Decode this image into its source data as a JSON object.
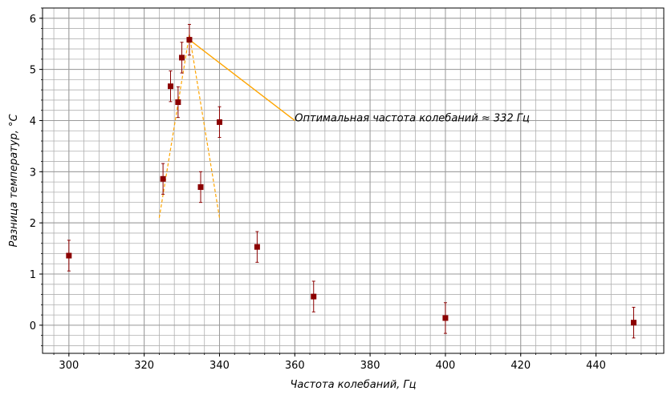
{
  "chart_data": {
    "type": "scatter",
    "xlabel": "Частота колебаний, Гц",
    "ylabel": "Разница температур, °C",
    "xlim": [
      293,
      458
    ],
    "ylim": [
      -0.55,
      6.2
    ],
    "x_ticks": [
      300,
      320,
      340,
      360,
      380,
      400,
      420,
      440
    ],
    "y_ticks": [
      0,
      1,
      2,
      3,
      4,
      5,
      6
    ],
    "x_minor_step": 4,
    "y_minor_step": 0.2,
    "grid": true,
    "series": [
      {
        "marker": "square",
        "color": "#8b0000",
        "x": [
          300,
          325,
          327,
          329,
          330,
          332,
          335,
          340,
          350,
          365,
          400,
          450
        ],
        "y": [
          1.36,
          2.86,
          4.67,
          4.36,
          5.23,
          5.58,
          2.7,
          3.97,
          1.53,
          0.56,
          0.14,
          0.05
        ],
        "y_error": [
          0.3,
          0.3,
          0.3,
          0.3,
          0.3,
          0.3,
          0.3,
          0.3,
          0.3,
          0.3,
          0.3,
          0.3
        ]
      }
    ],
    "fit_lines": [
      {
        "color": "#ffa500",
        "style": "dashed",
        "x": [
          324,
          332
        ],
        "y": [
          2.1,
          5.68
        ]
      },
      {
        "color": "#ffa500",
        "style": "dashed",
        "x": [
          332,
          340
        ],
        "y": [
          5.68,
          2.1
        ]
      }
    ],
    "annotation": {
      "text": "Оптимальная частота колебаний ≈ 332 Гц",
      "text_at": [
        360,
        4.0
      ],
      "arrow_to": [
        332,
        5.58
      ],
      "color": "#ffa500"
    }
  }
}
